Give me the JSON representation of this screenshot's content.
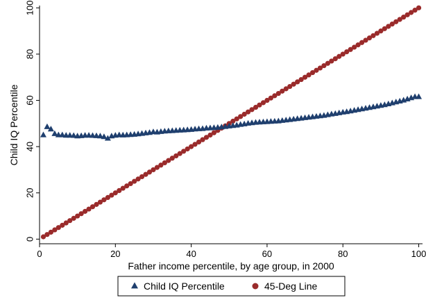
{
  "chart_data": {
    "type": "scatter",
    "title": "",
    "xlabel": "Father income percentile, by age group, in 2000",
    "ylabel": "Child IQ Percentile",
    "xlim": [
      0,
      101
    ],
    "ylim": [
      -2,
      101
    ],
    "xticks": [
      0,
      20,
      40,
      60,
      80,
      100
    ],
    "yticks": [
      0,
      20,
      40,
      60,
      80,
      100
    ],
    "grid": false,
    "legend_position": "bottom",
    "series": [
      {
        "name": "Child IQ Percentile",
        "marker": "triangle",
        "color": "#1f3f6e",
        "x": [
          1,
          2,
          3,
          4,
          5,
          6,
          7,
          8,
          9,
          10,
          11,
          12,
          13,
          14,
          15,
          16,
          17,
          18,
          19,
          20,
          21,
          22,
          23,
          24,
          25,
          26,
          27,
          28,
          29,
          30,
          31,
          32,
          33,
          34,
          35,
          36,
          37,
          38,
          39,
          40,
          41,
          42,
          43,
          44,
          45,
          46,
          47,
          48,
          49,
          50,
          51,
          52,
          53,
          54,
          55,
          56,
          57,
          58,
          59,
          60,
          61,
          62,
          63,
          64,
          65,
          66,
          67,
          68,
          69,
          70,
          71,
          72,
          73,
          74,
          75,
          76,
          77,
          78,
          79,
          80,
          81,
          82,
          83,
          84,
          85,
          86,
          87,
          88,
          89,
          90,
          91,
          92,
          93,
          94,
          95,
          96,
          97,
          98,
          99,
          100
        ],
        "y": [
          45,
          48.5,
          47.5,
          45.5,
          45,
          45,
          44.8,
          44.8,
          44.7,
          44.5,
          44.6,
          44.8,
          44.8,
          44.7,
          44.6,
          44.5,
          44.2,
          43.5,
          44.5,
          44.8,
          45,
          44.9,
          45,
          45.1,
          45.2,
          45.4,
          45.6,
          45.8,
          46,
          46.3,
          46.2,
          46.4,
          46.6,
          46.7,
          46.8,
          46.9,
          47,
          47.1,
          47.2,
          47.3,
          47.5,
          47.6,
          47.7,
          47.9,
          48,
          48.1,
          48.2,
          48.4,
          48.6,
          48.8,
          49,
          49.2,
          49.5,
          49.7,
          50,
          50.2,
          50.4,
          50.5,
          50.6,
          50.7,
          50.8,
          50.9,
          51,
          51.2,
          51.4,
          51.6,
          51.8,
          52,
          52.2,
          52.4,
          52.6,
          52.8,
          53,
          53.2,
          53.4,
          53.7,
          54,
          54.2,
          54.5,
          54.8,
          55,
          55.3,
          55.6,
          55.9,
          56.2,
          56.5,
          56.8,
          57.1,
          57.4,
          57.7,
          58,
          58.4,
          58.8,
          59.2,
          59.6,
          60,
          60.5,
          61,
          61.5,
          61.5
        ]
      },
      {
        "name": "45-Deg Line",
        "marker": "circle",
        "color": "#9a2b2b",
        "x": [
          1,
          2,
          3,
          4,
          5,
          6,
          7,
          8,
          9,
          10,
          11,
          12,
          13,
          14,
          15,
          16,
          17,
          18,
          19,
          20,
          21,
          22,
          23,
          24,
          25,
          26,
          27,
          28,
          29,
          30,
          31,
          32,
          33,
          34,
          35,
          36,
          37,
          38,
          39,
          40,
          41,
          42,
          43,
          44,
          45,
          46,
          47,
          48,
          49,
          50,
          51,
          52,
          53,
          54,
          55,
          56,
          57,
          58,
          59,
          60,
          61,
          62,
          63,
          64,
          65,
          66,
          67,
          68,
          69,
          70,
          71,
          72,
          73,
          74,
          75,
          76,
          77,
          78,
          79,
          80,
          81,
          82,
          83,
          84,
          85,
          86,
          87,
          88,
          89,
          90,
          91,
          92,
          93,
          94,
          95,
          96,
          97,
          98,
          99,
          100
        ],
        "y": [
          1,
          2,
          3,
          4,
          5,
          6,
          7,
          8,
          9,
          10,
          11,
          12,
          13,
          14,
          15,
          16,
          17,
          18,
          19,
          20,
          21,
          22,
          23,
          24,
          25,
          26,
          27,
          28,
          29,
          30,
          31,
          32,
          33,
          34,
          35,
          36,
          37,
          38,
          39,
          40,
          41,
          42,
          43,
          44,
          45,
          46,
          47,
          48,
          49,
          50,
          51,
          52,
          53,
          54,
          55,
          56,
          57,
          58,
          59,
          60,
          61,
          62,
          63,
          64,
          65,
          66,
          67,
          68,
          69,
          70,
          71,
          72,
          73,
          74,
          75,
          76,
          77,
          78,
          79,
          80,
          81,
          82,
          83,
          84,
          85,
          86,
          87,
          88,
          89,
          90,
          91,
          92,
          93,
          94,
          95,
          96,
          97,
          98,
          99,
          100
        ]
      }
    ]
  }
}
